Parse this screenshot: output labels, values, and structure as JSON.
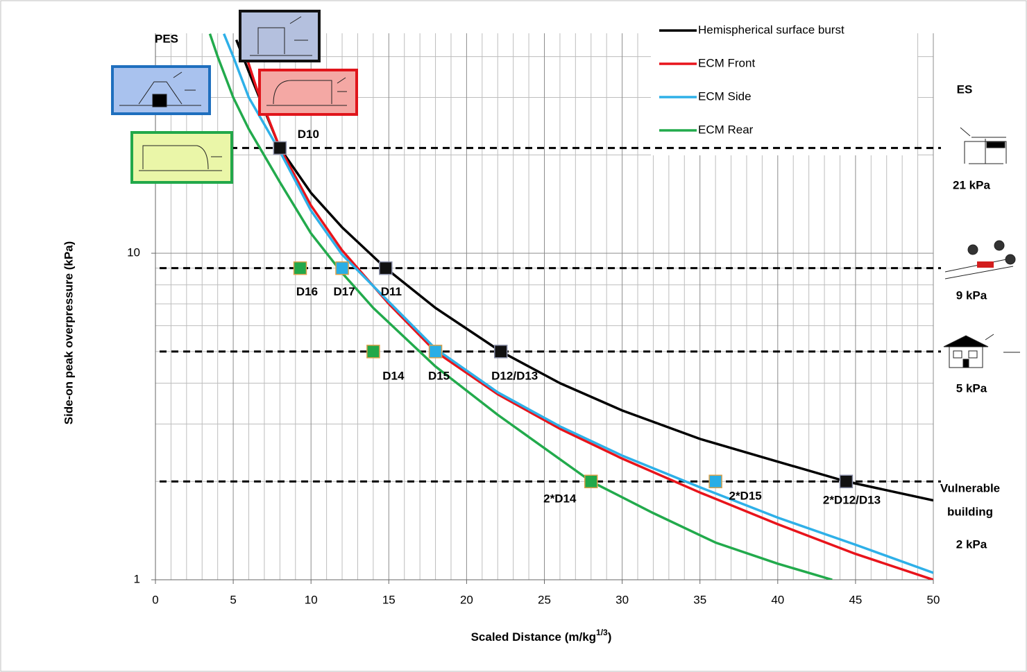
{
  "chart_data": {
    "type": "line",
    "y_label": "Side-on peak overpressure (kPa)",
    "x_label": [
      "Scaled Distance (m/kg",
      "1/3",
      ")"
    ],
    "xlim": [
      0,
      50
    ],
    "xticks": [
      0,
      5,
      10,
      15,
      20,
      25,
      30,
      35,
      40,
      45,
      50
    ],
    "xminor": [
      1,
      2,
      3,
      4,
      6,
      7,
      8,
      9,
      11,
      12,
      13,
      14,
      16,
      17,
      18,
      19,
      21,
      22,
      23,
      24,
      26,
      27,
      28,
      29,
      31,
      32,
      33,
      34,
      36,
      37,
      38,
      39,
      41,
      42,
      43,
      44,
      46,
      47,
      48,
      49
    ],
    "ylim": [
      1,
      50
    ],
    "yticks": [
      1,
      10
    ],
    "yminor": [
      2,
      3,
      4,
      5,
      6,
      7,
      8,
      9,
      20,
      30,
      40
    ],
    "log_y": true,
    "grid": true,
    "legend": "top-right",
    "series": [
      {
        "name": "Hemispherical surface burst",
        "color": "#000000",
        "x": [
          5.2,
          6,
          8,
          10,
          12,
          14.8,
          18,
          22.2,
          26,
          30,
          35,
          40,
          44.4,
          50
        ],
        "values": [
          45,
          36,
          21,
          15.3,
          12,
          9,
          6.8,
          5,
          4,
          3.3,
          2.7,
          2.3,
          2,
          1.75
        ]
      },
      {
        "name": "ECM Front",
        "color": "#e8141b",
        "x": [
          5.5,
          6.5,
          8,
          10,
          12,
          15,
          18,
          22,
          26,
          30,
          35,
          40,
          45,
          50
        ],
        "values": [
          45,
          32,
          21,
          14,
          10.2,
          7,
          5,
          3.7,
          2.9,
          2.35,
          1.85,
          1.48,
          1.2,
          1.0
        ]
      },
      {
        "name": "ECM Side",
        "color": "#2eb0e8",
        "x": [
          4.4,
          5,
          6,
          8,
          10,
          12,
          15,
          18,
          22,
          26,
          30,
          35,
          40,
          45,
          50
        ],
        "values": [
          47,
          40,
          30,
          20.5,
          13.5,
          9.9,
          7.1,
          5.1,
          3.75,
          2.95,
          2.4,
          1.92,
          1.55,
          1.28,
          1.05
        ]
      },
      {
        "name": "ECM Rear",
        "color": "#22aa4c",
        "x": [
          3.5,
          4,
          5,
          6,
          8,
          10,
          12,
          14,
          18,
          22,
          28,
          32,
          36,
          40,
          43.5
        ],
        "values": [
          47,
          40,
          30,
          24,
          16.5,
          11.5,
          8.7,
          6.8,
          4.5,
          3.2,
          2,
          1.6,
          1.3,
          1.12,
          1.0
        ]
      }
    ],
    "markers": [
      {
        "label": "D10",
        "x": 8,
        "y": 21,
        "color": "#111111"
      },
      {
        "label": "D11",
        "x": 14.8,
        "y": 9,
        "color": "#111111"
      },
      {
        "label": "D12/D13",
        "x": 22.2,
        "y": 5,
        "color": "#111111"
      },
      {
        "label": "2*D12/D13",
        "x": 44.4,
        "y": 2,
        "color": "#111111"
      },
      {
        "label": "D17",
        "x": 12,
        "y": 9,
        "color": "#29aee6"
      },
      {
        "label": "D15",
        "x": 18,
        "y": 5,
        "color": "#29aee6"
      },
      {
        "label": "2*D15",
        "x": 36,
        "y": 2,
        "color": "#29aee6"
      },
      {
        "label": "D16",
        "x": 9.3,
        "y": 9,
        "color": "#22a84a"
      },
      {
        "label": "D14",
        "x": 14,
        "y": 5,
        "color": "#22a84a"
      },
      {
        "label": "2*D14",
        "x": 28,
        "y": 2,
        "color": "#22a84a"
      }
    ],
    "reference_lines": [
      {
        "value": 21,
        "label": "21 kPa"
      },
      {
        "value": 9,
        "label": "9 kPa"
      },
      {
        "value": 5,
        "label": "5 kPa"
      },
      {
        "value": 2,
        "label": "2 kPa",
        "note": [
          "Vulnerable",
          "building"
        ]
      }
    ],
    "left_label": "PES",
    "right_label": "ES"
  }
}
